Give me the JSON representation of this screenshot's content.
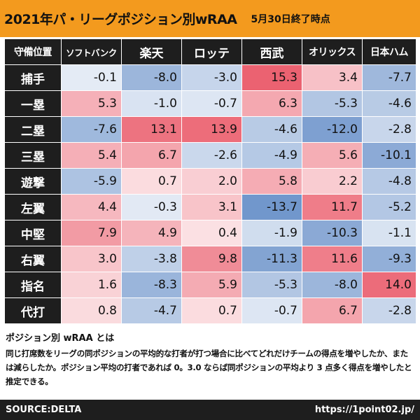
{
  "title": {
    "main": "2021年パ・リーグポジション別wRAA",
    "sub": "5月30日終了時点"
  },
  "table": {
    "corner_label": "守備位置",
    "teams": [
      "ソフトバンク",
      "楽天",
      "ロッテ",
      "西武",
      "オリックス",
      "日本ハム"
    ],
    "rows": [
      {
        "position": "捕手",
        "values": [
          "-0.1",
          "-8.0",
          "-3.0",
          "15.3",
          "3.4",
          "-7.7"
        ]
      },
      {
        "position": "一塁",
        "values": [
          "5.3",
          "-1.0",
          "-0.7",
          "6.3",
          "-5.3",
          "-4.6"
        ]
      },
      {
        "position": "二塁",
        "values": [
          "-7.6",
          "13.1",
          "13.9",
          "-4.6",
          "-12.0",
          "-2.8"
        ]
      },
      {
        "position": "三塁",
        "values": [
          "5.4",
          "6.7",
          "-2.6",
          "-4.9",
          "5.6",
          "-10.1"
        ]
      },
      {
        "position": "遊撃",
        "values": [
          "-5.9",
          "0.7",
          "2.0",
          "5.8",
          "2.2",
          "-4.8"
        ]
      },
      {
        "position": "左翼",
        "values": [
          "4.4",
          "-0.3",
          "3.1",
          "-13.7",
          "11.7",
          "-5.2"
        ]
      },
      {
        "position": "中堅",
        "values": [
          "7.9",
          "4.9",
          "0.4",
          "-1.9",
          "-10.3",
          "-1.1"
        ]
      },
      {
        "position": "右翼",
        "values": [
          "3.0",
          "-3.8",
          "9.8",
          "-11.3",
          "11.6",
          "-9.3"
        ]
      },
      {
        "position": "指名",
        "values": [
          "1.6",
          "-8.3",
          "5.9",
          "-5.3",
          "-8.0",
          "14.0"
        ]
      },
      {
        "position": "代打",
        "values": [
          "0.8",
          "-4.7",
          "0.7",
          "-0.7",
          "6.7",
          "-2.8"
        ]
      }
    ]
  },
  "note": {
    "title": "ポジション別 wRAA とは",
    "body": "同じ打席数をリーグの同ポジションの平均的な打者が打つ場合に比べてどれだけチームの得点を増やしたか、または減らしたか。ポジション平均の打者であれば 0。3.0 ならば同ポジションの平均より 3 点多く得点を増やしたと推定できる。"
  },
  "footer": {
    "source": "SOURCE:DELTA",
    "url": "https://1point02.jp/"
  },
  "colors": {
    "header_bg": "#1e1e1e",
    "title_bg": "#f39a1e",
    "positive": "#e8495a",
    "negative": "#4d7cbf"
  }
}
